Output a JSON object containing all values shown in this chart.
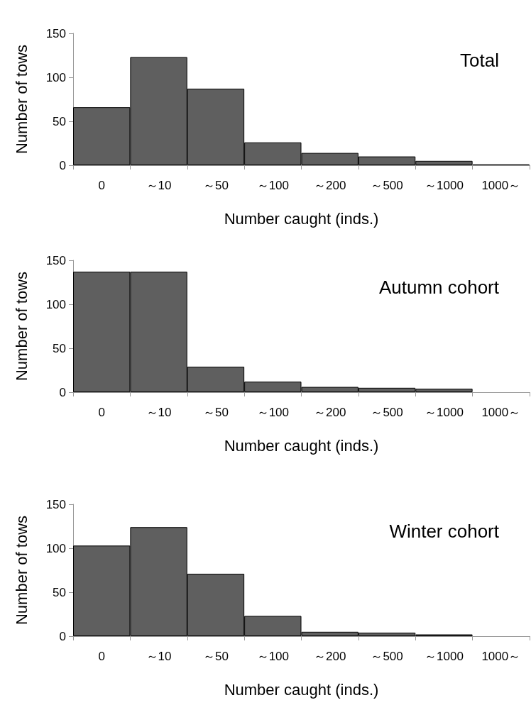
{
  "chart_data": [
    {
      "type": "bar",
      "title": "Total",
      "xlabel": "Number caught (inds.)",
      "ylabel": "Number of tows",
      "categories": [
        "0",
        "～10",
        "～50",
        "～100",
        "～200",
        "～500",
        "～1000",
        "1000～"
      ],
      "values": [
        66,
        123,
        87,
        26,
        14,
        10,
        5,
        1
      ],
      "color": "#5f5f5f",
      "ylim": [
        0,
        150
      ],
      "yticks": [
        0,
        50,
        100,
        150
      ],
      "grid": false
    },
    {
      "type": "bar",
      "title": "Autumn cohort",
      "xlabel": "Number caught (inds.)",
      "ylabel": "Number of tows",
      "categories": [
        "0",
        "～10",
        "～50",
        "～100",
        "～200",
        "～500",
        "～1000",
        "1000～"
      ],
      "values": [
        137,
        137,
        29,
        12,
        6,
        5,
        4,
        0
      ],
      "color": "#5f5f5f",
      "ylim": [
        0,
        150
      ],
      "yticks": [
        0,
        50,
        100,
        150
      ],
      "grid": false
    },
    {
      "type": "bar",
      "title": "Winter cohort",
      "xlabel": "Number caught (inds.)",
      "ylabel": "Number of tows",
      "categories": [
        "0",
        "～10",
        "～50",
        "～100",
        "～200",
        "～500",
        "～1000",
        "1000～"
      ],
      "values": [
        103,
        124,
        71,
        23,
        5,
        4,
        2,
        0
      ],
      "color": "#5f5f5f",
      "ylim": [
        0,
        150
      ],
      "yticks": [
        0,
        50,
        100,
        150
      ],
      "grid": false
    }
  ]
}
